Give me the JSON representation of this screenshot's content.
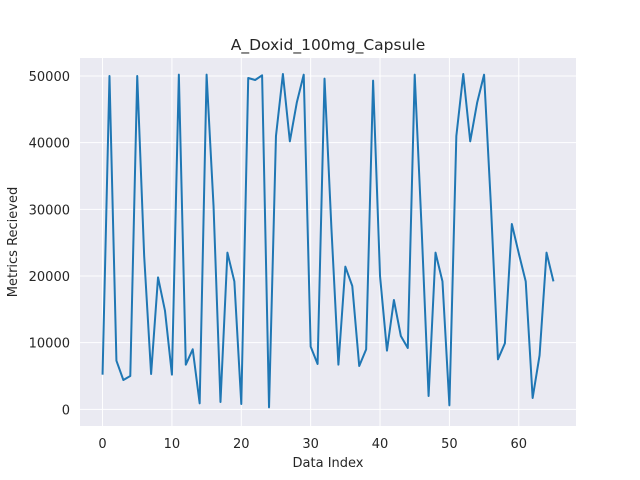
{
  "chart_data": {
    "type": "line",
    "title": "A_Doxid_100mg_Capsule",
    "xlabel": "Data Index",
    "ylabel": "Metrics Recieved",
    "xlim": [
      -3.25,
      68.25
    ],
    "ylim": [
      -2500,
      52700
    ],
    "xticks": [
      0,
      10,
      20,
      30,
      40,
      50,
      60
    ],
    "yticks": [
      0,
      10000,
      20000,
      30000,
      40000,
      50000
    ],
    "grid": true,
    "background": "#eaeaf2",
    "line_color": "#1f77b4",
    "series": [
      {
        "x": [
          0,
          1,
          2,
          3,
          4,
          5,
          6,
          7,
          8,
          9,
          10,
          11,
          12,
          13,
          14,
          15,
          16,
          17,
          18,
          19,
          20,
          21,
          22,
          23,
          24,
          25,
          26,
          27,
          28,
          29,
          30,
          31,
          32,
          33,
          34,
          35,
          36,
          37,
          38,
          39,
          40,
          41,
          42,
          43,
          44,
          45,
          46,
          47,
          48,
          49,
          50,
          51,
          52,
          53,
          54,
          55,
          56,
          57,
          58,
          59,
          60,
          61,
          62,
          63,
          64,
          65
        ],
        "values": [
          5200,
          50000,
          7300,
          4400,
          5000,
          50000,
          23000,
          5300,
          19800,
          14800,
          5200,
          50200,
          6700,
          9000,
          900,
          50200,
          30500,
          1100,
          23500,
          19200,
          800,
          49700,
          49400,
          50100,
          300,
          41000,
          50300,
          40200,
          46000,
          50200,
          9400,
          6800,
          49600,
          27000,
          6700,
          21400,
          18500,
          6500,
          9000,
          49300,
          20000,
          8800,
          16400,
          11000,
          9200,
          50200,
          27000,
          2000,
          23500,
          19200,
          600,
          41000,
          50300,
          40200,
          46000,
          50200,
          30300,
          7500,
          9900,
          27800,
          23400,
          19200,
          1700,
          8100,
          23500,
          19200
        ]
      }
    ]
  }
}
